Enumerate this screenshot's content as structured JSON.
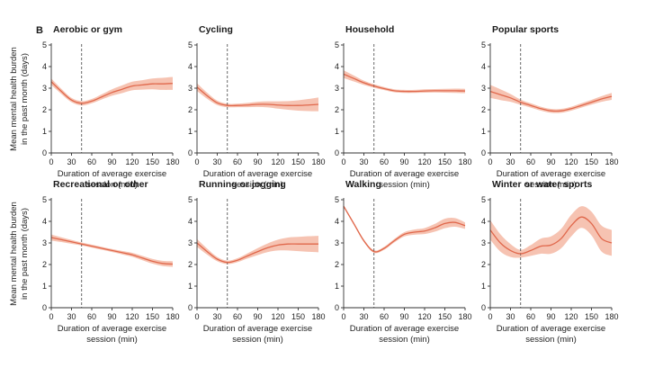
{
  "panel_letter": "B",
  "y_axis_label": [
    "Mean mental health burden",
    "in the past month (days)"
  ],
  "x_axis_label": [
    "Duration of average exercise",
    "session (min)"
  ],
  "colors": {
    "line": "#e0684c",
    "band": "#f5b9a4"
  },
  "chart_data": [
    {
      "type": "line",
      "title": "Aerobic or gym",
      "xlim": [
        0,
        180
      ],
      "ylim": [
        0,
        5
      ],
      "xticks": [
        0,
        30,
        60,
        90,
        120,
        150,
        180
      ],
      "yticks": [
        0,
        1,
        2,
        3,
        4,
        5
      ],
      "ref_x": 45,
      "x": [
        0,
        15,
        30,
        45,
        60,
        75,
        90,
        105,
        120,
        135,
        150,
        165,
        180
      ],
      "y": [
        3.3,
        2.85,
        2.45,
        2.3,
        2.4,
        2.6,
        2.8,
        2.95,
        3.1,
        3.15,
        3.2,
        3.2,
        3.22
      ],
      "ci": [
        0.15,
        0.12,
        0.1,
        0.1,
        0.1,
        0.12,
        0.15,
        0.18,
        0.2,
        0.22,
        0.25,
        0.28,
        0.3
      ]
    },
    {
      "type": "line",
      "title": "Cycling",
      "xlim": [
        0,
        180
      ],
      "ylim": [
        0,
        5
      ],
      "xticks": [
        0,
        30,
        60,
        90,
        120,
        150,
        180
      ],
      "yticks": [
        0,
        1,
        2,
        3,
        4,
        5
      ],
      "ref_x": 45,
      "x": [
        0,
        15,
        30,
        45,
        60,
        75,
        90,
        105,
        120,
        135,
        150,
        165,
        180
      ],
      "y": [
        3.05,
        2.65,
        2.32,
        2.2,
        2.2,
        2.22,
        2.25,
        2.25,
        2.22,
        2.2,
        2.2,
        2.22,
        2.25
      ],
      "ci": [
        0.18,
        0.14,
        0.1,
        0.08,
        0.08,
        0.1,
        0.12,
        0.14,
        0.17,
        0.2,
        0.24,
        0.28,
        0.32
      ]
    },
    {
      "type": "line",
      "title": "Household",
      "xlim": [
        0,
        180
      ],
      "ylim": [
        0,
        5
      ],
      "xticks": [
        0,
        30,
        60,
        90,
        120,
        150,
        180
      ],
      "yticks": [
        0,
        1,
        2,
        3,
        4,
        5
      ],
      "ref_x": 45,
      "x": [
        0,
        15,
        30,
        45,
        60,
        75,
        90,
        105,
        120,
        135,
        150,
        165,
        180
      ],
      "y": [
        3.65,
        3.45,
        3.25,
        3.1,
        2.98,
        2.88,
        2.85,
        2.85,
        2.87,
        2.88,
        2.88,
        2.88,
        2.87
      ],
      "ci": [
        0.18,
        0.14,
        0.1,
        0.08,
        0.07,
        0.07,
        0.07,
        0.07,
        0.08,
        0.08,
        0.09,
        0.1,
        0.1
      ]
    },
    {
      "type": "line",
      "title": "Popular sports",
      "xlim": [
        0,
        180
      ],
      "ylim": [
        0,
        5
      ],
      "xticks": [
        0,
        30,
        60,
        90,
        120,
        150,
        180
      ],
      "yticks": [
        0,
        1,
        2,
        3,
        4,
        5
      ],
      "ref_x": 45,
      "x": [
        0,
        15,
        30,
        45,
        60,
        75,
        90,
        105,
        120,
        135,
        150,
        165,
        180
      ],
      "y": [
        2.85,
        2.7,
        2.55,
        2.35,
        2.2,
        2.05,
        1.95,
        1.95,
        2.05,
        2.2,
        2.35,
        2.5,
        2.62
      ],
      "ci": [
        0.3,
        0.25,
        0.18,
        0.12,
        0.1,
        0.09,
        0.09,
        0.09,
        0.09,
        0.1,
        0.11,
        0.13,
        0.16
      ]
    },
    {
      "type": "line",
      "title": "Recreational or other",
      "xlim": [
        0,
        180
      ],
      "ylim": [
        0,
        5
      ],
      "xticks": [
        0,
        30,
        60,
        90,
        120,
        150,
        180
      ],
      "yticks": [
        0,
        1,
        2,
        3,
        4,
        5
      ],
      "ref_x": 45,
      "x": [
        0,
        15,
        30,
        45,
        60,
        75,
        90,
        105,
        120,
        135,
        150,
        165,
        180
      ],
      "y": [
        3.25,
        3.15,
        3.05,
        2.95,
        2.85,
        2.75,
        2.65,
        2.55,
        2.45,
        2.3,
        2.15,
        2.05,
        2.02
      ],
      "ci": [
        0.14,
        0.11,
        0.09,
        0.07,
        0.07,
        0.07,
        0.07,
        0.08,
        0.09,
        0.1,
        0.11,
        0.12,
        0.13
      ]
    },
    {
      "type": "line",
      "title": "Running or jogging",
      "xlim": [
        0,
        180
      ],
      "ylim": [
        0,
        5
      ],
      "xticks": [
        0,
        30,
        60,
        90,
        120,
        150,
        180
      ],
      "yticks": [
        0,
        1,
        2,
        3,
        4,
        5
      ],
      "ref_x": 45,
      "x": [
        0,
        15,
        30,
        45,
        60,
        75,
        90,
        105,
        120,
        135,
        150,
        165,
        180
      ],
      "y": [
        3.0,
        2.6,
        2.25,
        2.1,
        2.2,
        2.4,
        2.6,
        2.78,
        2.9,
        2.95,
        2.95,
        2.95,
        2.95
      ],
      "ci": [
        0.18,
        0.14,
        0.1,
        0.08,
        0.09,
        0.12,
        0.16,
        0.2,
        0.25,
        0.3,
        0.33,
        0.36,
        0.38
      ]
    },
    {
      "type": "line",
      "title": "Walking",
      "xlim": [
        0,
        180
      ],
      "ylim": [
        0,
        5
      ],
      "xticks": [
        0,
        30,
        60,
        90,
        120,
        150,
        180
      ],
      "yticks": [
        0,
        1,
        2,
        3,
        4,
        5
      ],
      "ref_x": 45,
      "x": [
        0,
        15,
        30,
        45,
        60,
        75,
        90,
        105,
        120,
        135,
        150,
        165,
        180
      ],
      "y": [
        4.7,
        3.9,
        3.1,
        2.6,
        2.75,
        3.1,
        3.4,
        3.5,
        3.55,
        3.7,
        3.9,
        3.95,
        3.8
      ],
      "ci": [
        0.05,
        0.06,
        0.06,
        0.06,
        0.07,
        0.08,
        0.1,
        0.12,
        0.14,
        0.18,
        0.22,
        0.2,
        0.15
      ]
    },
    {
      "type": "line",
      "title": "Winter or water sports",
      "xlim": [
        0,
        180
      ],
      "ylim": [
        0,
        5
      ],
      "xticks": [
        0,
        30,
        60,
        90,
        120,
        150,
        180
      ],
      "yticks": [
        0,
        1,
        2,
        3,
        4,
        5
      ],
      "ref_x": 45,
      "x": [
        0,
        15,
        30,
        45,
        60,
        75,
        90,
        105,
        120,
        135,
        150,
        165,
        180
      ],
      "y": [
        3.6,
        3.0,
        2.65,
        2.5,
        2.65,
        2.85,
        2.9,
        3.2,
        3.8,
        4.2,
        3.9,
        3.2,
        3.0
      ],
      "ci": [
        0.45,
        0.4,
        0.3,
        0.18,
        0.25,
        0.35,
        0.4,
        0.45,
        0.5,
        0.5,
        0.55,
        0.6,
        0.6
      ]
    }
  ]
}
